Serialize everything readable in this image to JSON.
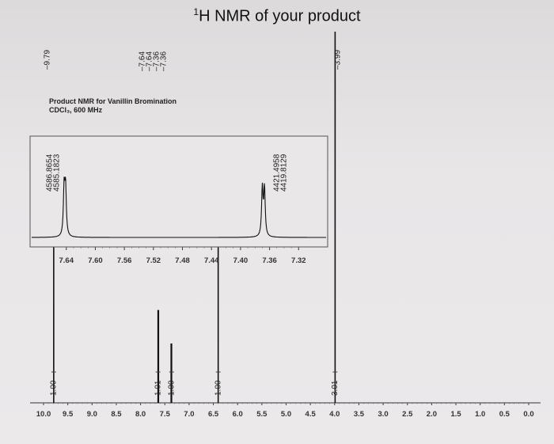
{
  "title_prefix": "1",
  "title_text": "H NMR of your product",
  "info": {
    "line1": "Product NMR for Vanillin Bromination",
    "line2": "CDCl₃, 600 MHz"
  },
  "chart_data": [
    {
      "type": "line",
      "name": "main-spectrum",
      "x_axis_ticks": [
        "10.0",
        "9.5",
        "9.0",
        "8.5",
        "8.0",
        "7.5",
        "7.0",
        "6.5",
        "6.0",
        "5.5",
        "5.0",
        "4.5",
        "4.0",
        "3.5",
        "3.0",
        "2.5",
        "2.0",
        "1.5",
        "1.0",
        "0.5",
        "0.0"
      ],
      "xlim": [
        10.0,
        0.0
      ],
      "x_reversed": true,
      "peaks": [
        {
          "ppm": 9.79,
          "height": 0.55
        },
        {
          "ppm": 7.64,
          "height": 0.25
        },
        {
          "ppm": 7.63,
          "height": 0.25
        },
        {
          "ppm": 7.37,
          "height": 0.16
        },
        {
          "ppm": 7.36,
          "height": 0.16
        },
        {
          "ppm": 6.4,
          "height": 0.55
        },
        {
          "ppm": 3.99,
          "height": 1.0
        }
      ],
      "peak_labels": [
        "9.79",
        "7.64",
        "7.64",
        "7.36",
        "7.36",
        "3.99"
      ],
      "integrals": [
        {
          "ppm": 9.79,
          "value": "1.00"
        },
        {
          "ppm": 7.64,
          "value": "1.01"
        },
        {
          "ppm": 7.36,
          "value": "1.00"
        },
        {
          "ppm": 6.4,
          "value": "1.00"
        },
        {
          "ppm": 3.99,
          "value": "3.01"
        }
      ]
    },
    {
      "type": "line",
      "name": "inset-aromatic",
      "x_axis_ticks": [
        "7.64",
        "7.60",
        "7.56",
        "7.52",
        "7.48",
        "7.44",
        "7.40",
        "7.36",
        "7.32"
      ],
      "xlim": [
        7.655,
        7.315
      ],
      "x_reversed": true,
      "peaks": [
        {
          "ppm": 7.643,
          "height": 0.38
        },
        {
          "ppm": 7.641,
          "height": 0.38
        },
        {
          "ppm": 7.37,
          "height": 0.38
        },
        {
          "ppm": 7.367,
          "height": 0.38
        }
      ],
      "peak_labels_hz": [
        "4586.8654",
        "4585.1823",
        "4421.4958",
        "4419.8129"
      ]
    }
  ]
}
